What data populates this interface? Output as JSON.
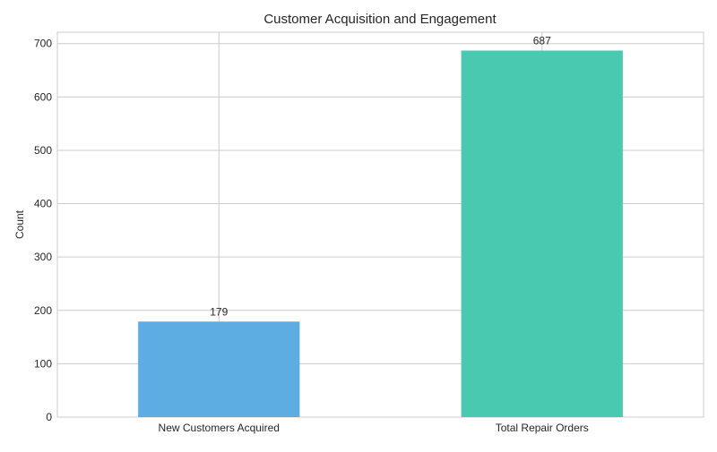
{
  "chart_data": {
    "type": "bar",
    "title": "Customer Acquisition and Engagement",
    "xlabel": "",
    "ylabel": "Count",
    "categories": [
      "New Customers Acquired",
      "Total Repair Orders"
    ],
    "values": [
      179,
      687
    ],
    "data_labels": [
      "179",
      "687"
    ],
    "bar_colors": [
      "#5dade2",
      "#48c9b0"
    ],
    "ylim": [
      0,
      721.35
    ],
    "yticks": [
      0,
      100,
      200,
      300,
      400,
      500,
      600,
      700
    ],
    "grid": true,
    "legend": "none"
  }
}
